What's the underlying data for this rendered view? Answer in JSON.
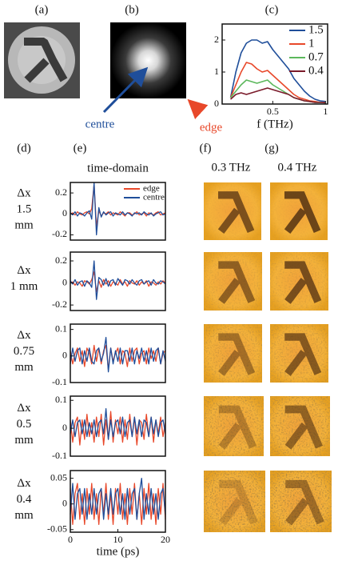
{
  "panel_labels": [
    "(a)",
    "(b)",
    "(c)",
    "(d)",
    "(e)",
    "(f)",
    "(g)"
  ],
  "annotations": {
    "centre": "centre",
    "edge": "edge"
  },
  "column_titles": [
    "0.3 THz",
    "0.4 THz"
  ],
  "chart_data": [
    {
      "type": "line",
      "xlabel": "f (THz)",
      "x": [
        0.1,
        0.15,
        0.2,
        0.25,
        0.3,
        0.35,
        0.4,
        0.45,
        0.5,
        0.55,
        0.6,
        0.65,
        0.7,
        0.75,
        0.8,
        0.85,
        0.9,
        0.95,
        1.0
      ],
      "xlim": [
        0.02,
        1.02
      ],
      "xticks": [
        0.5,
        1
      ],
      "ylim": [
        0,
        2.5
      ],
      "yticks": [
        0,
        1,
        2
      ],
      "legend": "upper right",
      "series": [
        {
          "name": "1.5",
          "color": "#1f4e9a",
          "values": [
            0.2,
            1.0,
            1.6,
            1.9,
            2.0,
            2.0,
            1.9,
            1.95,
            1.7,
            1.5,
            1.3,
            1.1,
            0.8,
            0.6,
            0.4,
            0.25,
            0.15,
            0.1,
            0.08
          ]
        },
        {
          "name": "1",
          "color": "#e8482a",
          "values": [
            0.2,
            0.6,
            1.0,
            1.3,
            1.25,
            1.1,
            1.0,
            1.05,
            0.9,
            0.75,
            0.6,
            0.45,
            0.3,
            0.2,
            0.15,
            0.1,
            0.08,
            0.05,
            0.05
          ]
        },
        {
          "name": "0.7",
          "color": "#5cb85c",
          "values": [
            0.2,
            0.4,
            0.6,
            0.75,
            0.7,
            0.65,
            0.7,
            0.75,
            0.6,
            0.5,
            0.4,
            0.3,
            0.2,
            0.15,
            0.1,
            0.08,
            0.05,
            0.05,
            0.04
          ]
        },
        {
          "name": "0.4",
          "color": "#7a1a2a",
          "values": [
            0.15,
            0.3,
            0.35,
            0.3,
            0.35,
            0.4,
            0.45,
            0.5,
            0.45,
            0.4,
            0.35,
            0.3,
            0.2,
            0.15,
            0.1,
            0.08,
            0.05,
            0.05,
            0.04
          ]
        }
      ]
    },
    {
      "type": "line",
      "title": "time-domain",
      "row_label": [
        "Δx",
        "1.5",
        "mm"
      ],
      "x": [
        0,
        0.5,
        1,
        1.5,
        2,
        2.5,
        3,
        3.5,
        4,
        4.5,
        5,
        5.5,
        6,
        6.5,
        7,
        7.5,
        8,
        8.5,
        9,
        9.5,
        10,
        10.5,
        11,
        11.5,
        12,
        12.5,
        13,
        13.5,
        14,
        14.5,
        15,
        15.5,
        16,
        16.5,
        17,
        17.5,
        18,
        18.5,
        19,
        19.5,
        20
      ],
      "xlim": [
        0,
        20
      ],
      "ylim": [
        -0.25,
        0.3
      ],
      "yticks": [
        -0.2,
        0,
        0.2
      ],
      "legend": "upper right",
      "series": [
        {
          "name": "edge",
          "color": "#e8482a",
          "values": [
            0,
            0.01,
            -0.01,
            0.02,
            0,
            -0.01,
            0.01,
            0.02,
            0,
            0.05,
            0.28,
            -0.12,
            0.03,
            -0.02,
            0.01,
            0,
            0.02,
            -0.01,
            0.01,
            0,
            -0.01,
            0.02,
            0,
            -0.02,
            0.01,
            0.01,
            -0.01,
            0,
            0.02,
            -0.01,
            0,
            0.01,
            -0.02,
            0.01,
            0,
            -0.01,
            0.01,
            0.02,
            -0.01,
            0,
            0.01
          ]
        },
        {
          "name": "centre",
          "color": "#1f4e9a",
          "values": [
            0.01,
            -0.01,
            0.02,
            -0.02,
            0.01,
            0,
            -0.02,
            0.01,
            0.03,
            -0.05,
            0.3,
            -0.2,
            0.06,
            -0.03,
            0.02,
            -0.01,
            0.01,
            0.02,
            -0.02,
            0.01,
            0,
            -0.01,
            0.02,
            -0.01,
            0.01,
            0,
            -0.02,
            0.01,
            0,
            0.01,
            -0.01,
            0.02,
            0,
            -0.01,
            0.01,
            -0.02,
            0,
            0.01,
            0.02,
            -0.01,
            0
          ]
        }
      ]
    },
    {
      "type": "line",
      "row_label": [
        "Δx",
        "1 mm"
      ],
      "x": [
        0,
        0.5,
        1,
        1.5,
        2,
        2.5,
        3,
        3.5,
        4,
        4.5,
        5,
        5.5,
        6,
        6.5,
        7,
        7.5,
        8,
        8.5,
        9,
        9.5,
        10,
        10.5,
        11,
        11.5,
        12,
        12.5,
        13,
        13.5,
        14,
        14.5,
        15,
        15.5,
        16,
        16.5,
        17,
        17.5,
        18,
        18.5,
        19,
        19.5,
        20
      ],
      "xlim": [
        0,
        20
      ],
      "ylim": [
        -0.25,
        0.28
      ],
      "yticks": [
        -0.2,
        0,
        0.2
      ],
      "series": [
        {
          "color": "#e8482a",
          "values": [
            0,
            0.01,
            -0.02,
            0.01,
            0,
            -0.03,
            0.02,
            0.01,
            -0.01,
            0.03,
            0.1,
            -0.08,
            0.02,
            -0.04,
            0.03,
            -0.01,
            0.02,
            -0.03,
            0.01,
            0,
            -0.02,
            0.03,
            -0.01,
            0.01,
            -0.03,
            0.02,
            0,
            -0.01,
            0.02,
            -0.02,
            0.01,
            -0.01,
            0.02,
            -0.03,
            0.01,
            0,
            -0.02,
            0.01,
            -0.01,
            0.02,
            0
          ]
        },
        {
          "color": "#1f4e9a",
          "values": [
            0.02,
            -0.01,
            0.03,
            -0.02,
            0.01,
            0.02,
            -0.03,
            0.02,
            0,
            -0.04,
            0.2,
            -0.15,
            0.05,
            0.03,
            -0.02,
            0.04,
            -0.03,
            0.02,
            0.03,
            -0.02,
            0.04,
            0.01,
            -0.02,
            0.03,
            0.02,
            -0.01,
            0.03,
            0,
            -0.02,
            0.02,
            0.03,
            -0.01,
            0.01,
            0.02,
            -0.02,
            0.03,
            0,
            -0.01,
            0.02,
            0.01,
            -0.01
          ]
        }
      ]
    },
    {
      "type": "line",
      "row_label": [
        "Δx",
        "0.75",
        "mm"
      ],
      "x": [
        0,
        0.5,
        1,
        1.5,
        2,
        2.5,
        3,
        3.5,
        4,
        4.5,
        5,
        5.5,
        6,
        6.5,
        7,
        7.5,
        8,
        8.5,
        9,
        9.5,
        10,
        10.5,
        11,
        11.5,
        12,
        12.5,
        13,
        13.5,
        14,
        14.5,
        15,
        15.5,
        16,
        16.5,
        17,
        17.5,
        18,
        18.5,
        19,
        19.5,
        20
      ],
      "xlim": [
        0,
        20
      ],
      "ylim": [
        -0.1,
        0.12
      ],
      "yticks": [
        -0.1,
        0,
        0.1
      ],
      "series": [
        {
          "color": "#e8482a",
          "values": [
            0.02,
            -0.03,
            0.01,
            0.03,
            -0.02,
            0.02,
            -0.04,
            0.03,
            0.01,
            -0.03,
            0.04,
            -0.02,
            0.03,
            -0.03,
            0.02,
            0.04,
            -0.05,
            0.03,
            -0.02,
            0.01,
            0.03,
            -0.03,
            0.02,
            0.01,
            -0.04,
            0.03,
            -0.02,
            0.02,
            0.03,
            -0.03,
            0.01,
            0.02,
            -0.03,
            0.03,
            -0.01,
            0.02,
            -0.02,
            0.03,
            -0.03,
            0.01,
            0.02
          ]
        },
        {
          "color": "#1f4e9a",
          "values": [
            -0.03,
            0.03,
            -0.02,
            0.02,
            0.03,
            -0.03,
            0.02,
            -0.02,
            0.03,
            -0.02,
            -0.03,
            0.02,
            0.03,
            -0.02,
            0.01,
            0.07,
            -0.06,
            0.03,
            -0.03,
            0.02,
            -0.02,
            0.03,
            -0.03,
            0.02,
            0.02,
            -0.02,
            0.03,
            -0.03,
            0.02,
            -0.01,
            0.03,
            -0.02,
            0.02,
            -0.03,
            0.03,
            -0.02,
            0.02,
            0.03,
            -0.03,
            0.02,
            -0.02
          ]
        }
      ]
    },
    {
      "type": "line",
      "row_label": [
        "Δx",
        "0.5",
        "mm"
      ],
      "x": [
        0,
        0.5,
        1,
        1.5,
        2,
        2.5,
        3,
        3.5,
        4,
        4.5,
        5,
        5.5,
        6,
        6.5,
        7,
        7.5,
        8,
        8.5,
        9,
        9.5,
        10,
        10.5,
        11,
        11.5,
        12,
        12.5,
        13,
        13.5,
        14,
        14.5,
        15,
        15.5,
        16,
        16.5,
        17,
        17.5,
        18,
        18.5,
        19,
        19.5,
        20
      ],
      "xlim": [
        0,
        20
      ],
      "ylim": [
        -0.1,
        0.115
      ],
      "yticks": [
        -0.1,
        0,
        0.1
      ],
      "series": [
        {
          "color": "#e8482a",
          "values": [
            0.03,
            -0.05,
            0.02,
            0.04,
            -0.06,
            0.03,
            -0.04,
            0.05,
            -0.03,
            0.02,
            -0.05,
            0.04,
            -0.03,
            0.05,
            -0.06,
            0.03,
            -0.04,
            0.06,
            -0.05,
            0.03,
            -0.02,
            0.04,
            -0.05,
            0.03,
            -0.04,
            0.05,
            -0.03,
            0.04,
            -0.06,
            0.03,
            0.02,
            -0.04,
            0.05,
            -0.03,
            0.04,
            -0.05,
            0.03,
            -0.02,
            0.04,
            -0.03,
            0.02
          ]
        },
        {
          "color": "#1f4e9a",
          "values": [
            -0.02,
            0.03,
            -0.03,
            0.02,
            0.03,
            -0.02,
            0.03,
            -0.03,
            0.02,
            -0.02,
            0.03,
            -0.03,
            0.02,
            0.03,
            -0.02,
            0.07,
            -0.04,
            0.03,
            -0.03,
            0.02,
            0.03,
            -0.02,
            0.04,
            -0.03,
            0.02,
            0.03,
            -0.03,
            0.04,
            -0.02,
            0.03,
            -0.03,
            0.03,
            0.02,
            -0.03,
            0.04,
            -0.02,
            0.03,
            -0.03,
            0.02,
            0.03,
            -0.02
          ]
        }
      ]
    },
    {
      "type": "line",
      "row_label": [
        "Δx",
        "0.4",
        "mm"
      ],
      "xlabel": "time (ps)",
      "x": [
        0,
        0.5,
        1,
        1.5,
        2,
        2.5,
        3,
        3.5,
        4,
        4.5,
        5,
        5.5,
        6,
        6.5,
        7,
        7.5,
        8,
        8.5,
        9,
        9.5,
        10,
        10.5,
        11,
        11.5,
        12,
        12.5,
        13,
        13.5,
        14,
        14.5,
        15,
        15.5,
        16,
        16.5,
        17,
        17.5,
        18,
        18.5,
        19,
        19.5,
        20
      ],
      "xlim": [
        0,
        20
      ],
      "xticks": [
        0,
        10,
        20
      ],
      "ylim": [
        -0.055,
        0.065
      ],
      "yticks": [
        -0.05,
        0,
        0.05
      ],
      "series": [
        {
          "color": "#e8482a",
          "values": [
            0.03,
            -0.04,
            0.02,
            0.04,
            -0.03,
            0.02,
            -0.04,
            0.03,
            -0.02,
            0.04,
            -0.03,
            0.02,
            -0.04,
            0.03,
            -0.02,
            0.04,
            -0.03,
            0.02,
            -0.04,
            0.03,
            -0.02,
            0.04,
            -0.03,
            0.02,
            -0.04,
            0.03,
            -0.02,
            0.04,
            -0.03,
            0.02,
            -0.04,
            0.03,
            -0.02,
            0.04,
            -0.03,
            0.02,
            -0.04,
            0.03,
            -0.02,
            0.04,
            -0.03
          ]
        },
        {
          "color": "#1f4e9a",
          "values": [
            -0.02,
            0.04,
            -0.03,
            0.02,
            0.03,
            -0.02,
            0.03,
            -0.03,
            0.02,
            -0.02,
            0.03,
            -0.02,
            0.02,
            0.03,
            -0.03,
            0.02,
            -0.02,
            0.03,
            -0.02,
            0.02,
            0.03,
            -0.02,
            0.02,
            -0.03,
            0.03,
            -0.02,
            0.02,
            0.03,
            -0.03,
            0.02,
            0.05,
            -0.03,
            0.02,
            -0.02,
            0.03,
            -0.02,
            0.02,
            -0.03,
            0.02,
            0.03,
            -0.02
          ]
        }
      ]
    }
  ]
}
